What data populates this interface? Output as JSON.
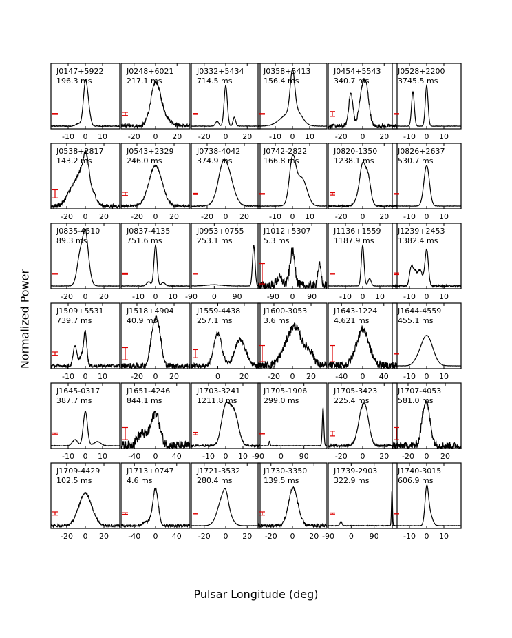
{
  "figure": {
    "xlabel": "Pulsar Longitude (deg)",
    "ylabel": "Normalized Power"
  },
  "chart_data": [
    {
      "type": "line",
      "name": "J0147+5922",
      "period": "196.3 ms",
      "xlim": [
        -20,
        20
      ],
      "xticks": [
        -10,
        0,
        10
      ],
      "errbar": 0.012,
      "components": [
        {
          "c": 0,
          "a": 1.0,
          "w": 1.2
        },
        {
          "c": 1.8,
          "a": 0.35,
          "w": 1.2
        },
        {
          "c": -4,
          "a": 0.06,
          "w": 1.5
        }
      ],
      "noise": 0.01
    },
    {
      "type": "line",
      "name": "J0248+6021",
      "period": "217.1 ms",
      "xlim": [
        -32,
        32
      ],
      "xticks": [
        -20,
        0,
        20
      ],
      "errbar": 0.04,
      "components": [
        {
          "c": 0,
          "a": 1.0,
          "w": 4.5
        },
        {
          "c": 8,
          "a": 0.2,
          "w": 6
        }
      ],
      "noise": 0.05
    },
    {
      "type": "line",
      "name": "J0332+5434",
      "period": "714.5 ms",
      "xlim": [
        -32,
        32
      ],
      "xticks": [
        -20,
        0,
        20
      ],
      "errbar": 0.012,
      "components": [
        {
          "c": 0,
          "a": 1.0,
          "w": 1.5
        },
        {
          "c": -8,
          "a": 0.12,
          "w": 1.5
        },
        {
          "c": 8,
          "a": 0.22,
          "w": 1.2
        }
      ],
      "noise": 0.005
    },
    {
      "type": "line",
      "name": "J0358+5413",
      "period": "156.4 ms",
      "xlim": [
        -20,
        20
      ],
      "xticks": [
        -10,
        0,
        10
      ],
      "errbar": 0.01,
      "components": [
        {
          "c": 0,
          "a": 1.0,
          "w": 1.3
        },
        {
          "c": -2,
          "a": 0.3,
          "w": 5
        },
        {
          "c": 3,
          "a": 0.2,
          "w": 3
        }
      ],
      "noise": 0.004
    },
    {
      "type": "line",
      "name": "J0454+5543",
      "period": "340.7 ms",
      "xlim": [
        -32,
        32
      ],
      "xticks": [
        -20,
        0,
        20
      ],
      "errbar": 0.06,
      "components": [
        {
          "c": -11,
          "a": 0.8,
          "w": 2
        },
        {
          "c": 0,
          "a": 0.9,
          "w": 3
        },
        {
          "c": 4,
          "a": 0.6,
          "w": 2.5
        }
      ],
      "noise": 0.05
    },
    {
      "type": "line",
      "name": "J0528+2200",
      "period": "3745.5 ms",
      "xlim": [
        -20,
        20
      ],
      "xticks": [
        -10,
        0,
        10
      ],
      "errbar": 0.01,
      "components": [
        {
          "c": -8,
          "a": 0.85,
          "w": 0.8
        },
        {
          "c": 0,
          "a": 1.0,
          "w": 0.8
        }
      ],
      "noise": 0.004
    },
    {
      "type": "line",
      "name": "J0538+2817",
      "period": "143.2 ms",
      "xlim": [
        -37,
        37
      ],
      "xticks": [
        -20,
        0,
        20
      ],
      "errbar": 0.1,
      "components": [
        {
          "c": -14,
          "a": 0.4,
          "w": 6
        },
        {
          "c": -4,
          "a": 0.7,
          "w": 5
        },
        {
          "c": 1,
          "a": 0.8,
          "w": 3
        },
        {
          "c": 8,
          "a": 0.3,
          "w": 4
        }
      ],
      "noise": 0.05
    },
    {
      "type": "line",
      "name": "J0543+2329",
      "period": "246.0 ms",
      "xlim": [
        -37,
        37
      ],
      "xticks": [
        -20,
        0,
        20
      ],
      "errbar": 0.04,
      "components": [
        {
          "c": 0,
          "a": 1.0,
          "w": 7
        }
      ],
      "noise": 0.025
    },
    {
      "type": "line",
      "name": "J0738-4042",
      "period": "374.9 ms",
      "xlim": [
        -37,
        37
      ],
      "xticks": [
        -20,
        0,
        20
      ],
      "errbar": 0.015,
      "components": [
        {
          "c": 0,
          "a": 1.0,
          "w": 7
        },
        {
          "c": -4,
          "a": 0.2,
          "w": 4
        }
      ],
      "noise": 0.01
    },
    {
      "type": "line",
      "name": "J0742-2822",
      "period": "166.8 ms",
      "xlim": [
        -20,
        20
      ],
      "xticks": [
        -10,
        0,
        10
      ],
      "errbar": 0.01,
      "components": [
        {
          "c": 0,
          "a": 0.95,
          "w": 1.8
        },
        {
          "c": 6,
          "a": 0.55,
          "w": 2.8
        },
        {
          "c": 2,
          "a": 0.3,
          "w": 3
        }
      ],
      "noise": 0.005
    },
    {
      "type": "line",
      "name": "J0820-1350",
      "period": "1238.1 ms",
      "xlim": [
        -32,
        32
      ],
      "xticks": [
        -20,
        0,
        20
      ],
      "errbar": 0.03,
      "components": [
        {
          "c": 0,
          "a": 0.9,
          "w": 2.5
        },
        {
          "c": 5,
          "a": 0.7,
          "w": 2.5
        },
        {
          "c": -4,
          "a": 0.2,
          "w": 3
        }
      ],
      "noise": 0.015
    },
    {
      "type": "line",
      "name": "J0826+2637",
      "period": "530.7 ms",
      "xlim": [
        -20,
        20
      ],
      "xticks": [
        -10,
        0,
        10
      ],
      "errbar": 0.01,
      "components": [
        {
          "c": 0,
          "a": 1.0,
          "w": 1.6
        }
      ],
      "noise": 0.004
    },
    {
      "type": "line",
      "name": "J0835-4510",
      "period": "89.3 ms",
      "xlim": [
        -37,
        37
      ],
      "xticks": [
        -20,
        0,
        20
      ],
      "errbar": 0.01,
      "components": [
        {
          "c": -5,
          "a": 0.85,
          "w": 3.5
        },
        {
          "c": 0,
          "a": 0.85,
          "w": 2.5
        },
        {
          "c": 3,
          "a": 0.4,
          "w": 3
        }
      ],
      "noise": 0.004
    },
    {
      "type": "line",
      "name": "J0837-4135",
      "period": "751.6 ms",
      "xlim": [
        -20,
        20
      ],
      "xticks": [
        -10,
        0,
        10
      ],
      "errbar": 0.015,
      "components": [
        {
          "c": 0,
          "a": 1.0,
          "w": 0.9
        },
        {
          "c": -4,
          "a": 0.1,
          "w": 1.2
        },
        {
          "c": 4.5,
          "a": 0.08,
          "w": 1.2
        }
      ],
      "noise": 0.006
    },
    {
      "type": "line",
      "name": "J0953+0755",
      "period": "253.1 ms",
      "xlim": [
        -90,
        180
      ],
      "xticks": [
        -90,
        0,
        90
      ],
      "xticklabels": [
        "-90",
        "0",
        "90"
      ],
      "errbar": 0.01,
      "components": [
        {
          "c": 155,
          "a": 1.0,
          "w": 5
        },
        {
          "c": 0,
          "a": 0.03,
          "w": 30
        }
      ],
      "noise": 0.004
    },
    {
      "type": "line",
      "name": "J1012+5307",
      "period": "5.3 ms",
      "xlim": [
        -160,
        160
      ],
      "xticks": [
        -90,
        0,
        90
      ],
      "errbar": 0.25,
      "components": [
        {
          "c": 0,
          "a": 0.85,
          "w": 12
        },
        {
          "c": -60,
          "a": 0.2,
          "w": 15
        },
        {
          "c": 125,
          "a": 0.5,
          "w": 8
        }
      ],
      "noise": 0.12
    },
    {
      "type": "line",
      "name": "J1136+1559",
      "period": "1187.9 ms",
      "xlim": [
        -20,
        20
      ],
      "xticks": [
        -10,
        0,
        10
      ],
      "errbar": 0.01,
      "components": [
        {
          "c": 0,
          "a": 1.0,
          "w": 0.8
        },
        {
          "c": 4,
          "a": 0.18,
          "w": 0.9
        }
      ],
      "noise": 0.004
    },
    {
      "type": "line",
      "name": "J1239+2453",
      "period": "1382.4 ms",
      "xlim": [
        -20,
        20
      ],
      "xticks": [
        -10,
        0,
        10
      ],
      "errbar": 0.02,
      "components": [
        {
          "c": -9,
          "a": 0.45,
          "w": 1
        },
        {
          "c": -7,
          "a": 0.3,
          "w": 1
        },
        {
          "c": -4,
          "a": 0.4,
          "w": 1.5
        },
        {
          "c": 0,
          "a": 0.9,
          "w": 1
        }
      ],
      "noise": 0.02
    },
    {
      "type": "line",
      "name": "J1509+5531",
      "period": "739.7 ms",
      "xlim": [
        -20,
        20
      ],
      "xticks": [
        -10,
        0,
        10
      ],
      "errbar": 0.04,
      "components": [
        {
          "c": -6,
          "a": 0.5,
          "w": 1
        },
        {
          "c": -2,
          "a": 0.25,
          "w": 1.5
        },
        {
          "c": 0,
          "a": 0.75,
          "w": 0.9
        }
      ],
      "noise": 0.04
    },
    {
      "type": "line",
      "name": "J1518+4904",
      "period": "40.9 ms",
      "xlim": [
        -37,
        37
      ],
      "xticks": [
        -20,
        0,
        20
      ],
      "errbar": 0.15,
      "components": [
        {
          "c": 0,
          "a": 0.85,
          "w": 4
        },
        {
          "c": -3,
          "a": 0.3,
          "w": 3
        },
        {
          "c": 4,
          "a": 0.4,
          "w": 3
        }
      ],
      "noise": 0.07
    },
    {
      "type": "line",
      "name": "J1559-4438",
      "period": "257.1 ms",
      "xlim": [
        -20,
        32
      ],
      "xticks": [
        0,
        20
      ],
      "errbar": 0.1,
      "components": [
        {
          "c": 0,
          "a": 0.8,
          "w": 3
        },
        {
          "c": 17,
          "a": 0.65,
          "w": 4
        }
      ],
      "noise": 0.06
    },
    {
      "type": "line",
      "name": "J1600-3053",
      "period": "3.6 ms",
      "xlim": [
        -37,
        37
      ],
      "xticks": [
        -20,
        0,
        20
      ],
      "errbar": 0.2,
      "components": [
        {
          "c": -3,
          "a": 0.6,
          "w": 8
        },
        {
          "c": 5,
          "a": 0.55,
          "w": 6
        },
        {
          "c": 18,
          "a": 0.35,
          "w": 5
        }
      ],
      "noise": 0.1
    },
    {
      "type": "line",
      "name": "J1643-1224",
      "period": "4.621 ms",
      "xlim": [
        -65,
        65
      ],
      "xticks": [
        -40,
        0,
        40
      ],
      "errbar": 0.2,
      "components": [
        {
          "c": 0,
          "a": 0.9,
          "w": 12
        }
      ],
      "noise": 0.1
    },
    {
      "type": "line",
      "name": "J1644-4559",
      "period": "455.1 ms",
      "xlim": [
        -20,
        20
      ],
      "xticks": [
        -10,
        0,
        10
      ],
      "errbar": 0.01,
      "components": [
        {
          "c": 0,
          "a": 0.75,
          "w": 3.5
        },
        {
          "c": -6,
          "a": 0.05,
          "w": 2
        }
      ],
      "noise": 0.002
    },
    {
      "type": "line",
      "name": "J1645-0317",
      "period": "387.7 ms",
      "xlim": [
        -20,
        20
      ],
      "xticks": [
        -10,
        0,
        10
      ],
      "errbar": 0.015,
      "components": [
        {
          "c": 0,
          "a": 0.85,
          "w": 1.2
        },
        {
          "c": -6,
          "a": 0.15,
          "w": 1.5
        },
        {
          "c": 7,
          "a": 0.1,
          "w": 2
        }
      ],
      "noise": 0.006
    },
    {
      "type": "line",
      "name": "J1651-4246",
      "period": "844.1 ms",
      "xlim": [
        -65,
        65
      ],
      "xticks": [
        -40,
        0,
        40
      ],
      "errbar": 0.15,
      "components": [
        {
          "c": 0,
          "a": 0.8,
          "w": 8
        },
        {
          "c": -25,
          "a": 0.3,
          "w": 10
        }
      ],
      "noise": 0.12
    },
    {
      "type": "line",
      "name": "J1703-3241",
      "period": "1211.8 ms",
      "xlim": [
        -20,
        20
      ],
      "xticks": [
        -10,
        0,
        10
      ],
      "errbar": 0.03,
      "components": [
        {
          "c": 0.5,
          "a": 0.7,
          "w": 2.5
        },
        {
          "c": 5,
          "a": 0.75,
          "w": 2.5
        },
        {
          "c": -1,
          "a": 0.3,
          "w": 2
        }
      ],
      "noise": 0.02
    },
    {
      "type": "line",
      "name": "J1705-1906",
      "period": "299.0 ms",
      "xlim": [
        -90,
        180
      ],
      "xticks": [
        -90,
        0,
        90
      ],
      "errbar": 0.01,
      "components": [
        {
          "c": 165,
          "a": 0.95,
          "w": 3
        },
        {
          "c": -45,
          "a": 0.12,
          "w": 2
        }
      ],
      "noise": 0.006
    },
    {
      "type": "line",
      "name": "J1705-3423",
      "period": "225.4 ms",
      "xlim": [
        -32,
        32
      ],
      "xticks": [
        -20,
        0,
        20
      ],
      "errbar": 0.06,
      "components": [
        {
          "c": 0,
          "a": 0.9,
          "w": 4
        },
        {
          "c": 4,
          "a": 0.3,
          "w": 3
        }
      ],
      "noise": 0.03
    },
    {
      "type": "line",
      "name": "J1707-4053",
      "period": "581.0 ms",
      "xlim": [
        -37,
        37
      ],
      "xticks": [
        -20,
        0,
        20
      ],
      "errbar": 0.15,
      "components": [
        {
          "c": 0,
          "a": 0.9,
          "w": 4
        },
        {
          "c": -3,
          "a": 0.3,
          "w": 3
        }
      ],
      "noise": 0.1
    },
    {
      "type": "line",
      "name": "J1709-4429",
      "period": "102.5 ms",
      "xlim": [
        -37,
        37
      ],
      "xticks": [
        -20,
        0,
        20
      ],
      "errbar": 0.04,
      "components": [
        {
          "c": 0,
          "a": 0.8,
          "w": 7
        }
      ],
      "noise": 0.03
    },
    {
      "type": "line",
      "name": "J1713+0747",
      "period": "4.6 ms",
      "xlim": [
        -65,
        65
      ],
      "xticks": [
        -40,
        0,
        40
      ],
      "errbar": 0.02,
      "components": [
        {
          "c": 0,
          "a": 0.9,
          "w": 5
        },
        {
          "c": -15,
          "a": 0.1,
          "w": 8
        }
      ],
      "noise": 0.03
    },
    {
      "type": "line",
      "name": "J1721-3532",
      "period": "280.4 ms",
      "xlim": [
        -32,
        32
      ],
      "xticks": [
        -20,
        0,
        20
      ],
      "errbar": 0.01,
      "components": [
        {
          "c": -2,
          "a": 0.75,
          "w": 5
        },
        {
          "c": 0,
          "a": 0.2,
          "w": 2
        }
      ],
      "noise": 0.003
    },
    {
      "type": "line",
      "name": "J1730-3350",
      "period": "139.5 ms",
      "xlim": [
        -32,
        32
      ],
      "xticks": [
        -20,
        0,
        20
      ],
      "errbar": 0.04,
      "components": [
        {
          "c": 0,
          "a": 0.8,
          "w": 4
        },
        {
          "c": 4,
          "a": 0.2,
          "w": 4
        }
      ],
      "noise": 0.04
    },
    {
      "type": "line",
      "name": "J1739-2903",
      "period": "322.9 ms",
      "xlim": [
        -90,
        180
      ],
      "xticks": [
        -90,
        0,
        90
      ],
      "errbar": 0.015,
      "components": [
        {
          "c": 160,
          "a": 0.9,
          "w": 2
        },
        {
          "c": -40,
          "a": 0.1,
          "w": 4
        }
      ],
      "noise": 0.008
    },
    {
      "type": "line",
      "name": "J1740-3015",
      "period": "606.9 ms",
      "xlim": [
        -20,
        20
      ],
      "xticks": [
        -10,
        0,
        10
      ],
      "errbar": 0.01,
      "components": [
        {
          "c": 0,
          "a": 0.85,
          "w": 1
        },
        {
          "c": 1.8,
          "a": 0.3,
          "w": 1.5
        }
      ],
      "noise": 0.004
    }
  ]
}
